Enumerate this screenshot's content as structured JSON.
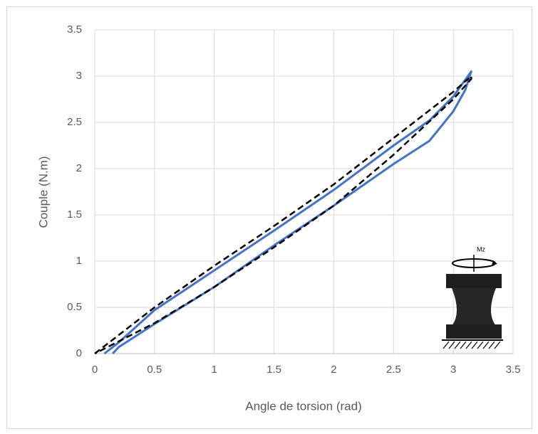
{
  "chart_data": {
    "type": "line",
    "x_label": "Angle de torsion (rad)",
    "y_label": "Couple (N.m)",
    "annotation": "Mz",
    "xlim": [
      0,
      3.5
    ],
    "xticks": [
      0,
      0.5,
      1,
      1.5,
      2,
      2.5,
      3,
      3.5
    ],
    "ylim": [
      0,
      3.5
    ],
    "yticks": [
      0,
      0.5,
      1,
      1.5,
      2,
      2.5,
      3,
      3.5
    ],
    "grid": true,
    "series": [
      {
        "color": "#4472c4",
        "line_style": "solid",
        "x": [
          0.08,
          0.2,
          0.5,
          1,
          1.5,
          2,
          2.5,
          2.8,
          3,
          3.15,
          3.1,
          3,
          2.8,
          2.5,
          2,
          1.5,
          1,
          0.5,
          0.2,
          0.15
        ],
        "values": [
          0,
          0.12,
          0.47,
          0.9,
          1.33,
          1.77,
          2.25,
          2.52,
          2.78,
          3.05,
          2.85,
          2.62,
          2.3,
          2.05,
          1.6,
          1.17,
          0.72,
          0.32,
          0.07,
          0
        ]
      },
      {
        "color": "#000000",
        "line_style": "dashed",
        "x": [
          0,
          0.5,
          1,
          1.5,
          2,
          2.5,
          3,
          3.15,
          3.15,
          3,
          2.5,
          2,
          1.5,
          1,
          0.5,
          0
        ],
        "values": [
          0,
          0.5,
          0.95,
          1.38,
          1.83,
          2.33,
          2.83,
          3.0,
          2.97,
          2.75,
          2.15,
          1.6,
          1.15,
          0.72,
          0.33,
          0
        ]
      }
    ]
  }
}
